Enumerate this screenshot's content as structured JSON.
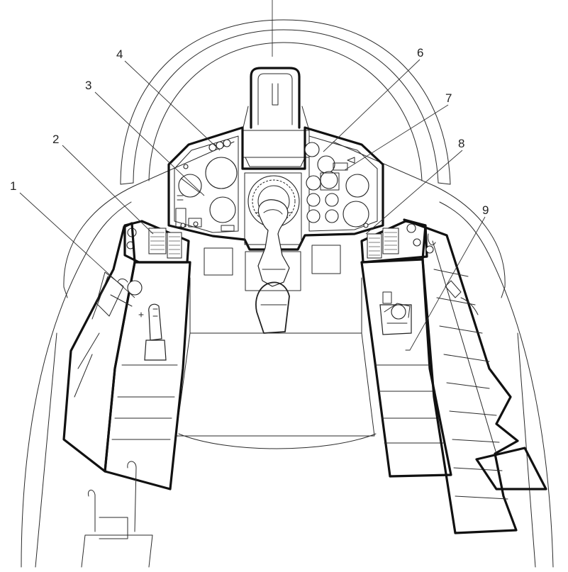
{
  "callouts": [
    {
      "id": "1",
      "label": "1"
    },
    {
      "id": "2",
      "label": "2"
    },
    {
      "id": "3",
      "label": "3"
    },
    {
      "id": "4",
      "label": "4"
    },
    {
      "id": "6",
      "label": "6"
    },
    {
      "id": "7",
      "label": "7"
    },
    {
      "id": "8",
      "label": "8"
    },
    {
      "id": "9",
      "label": "9"
    }
  ]
}
